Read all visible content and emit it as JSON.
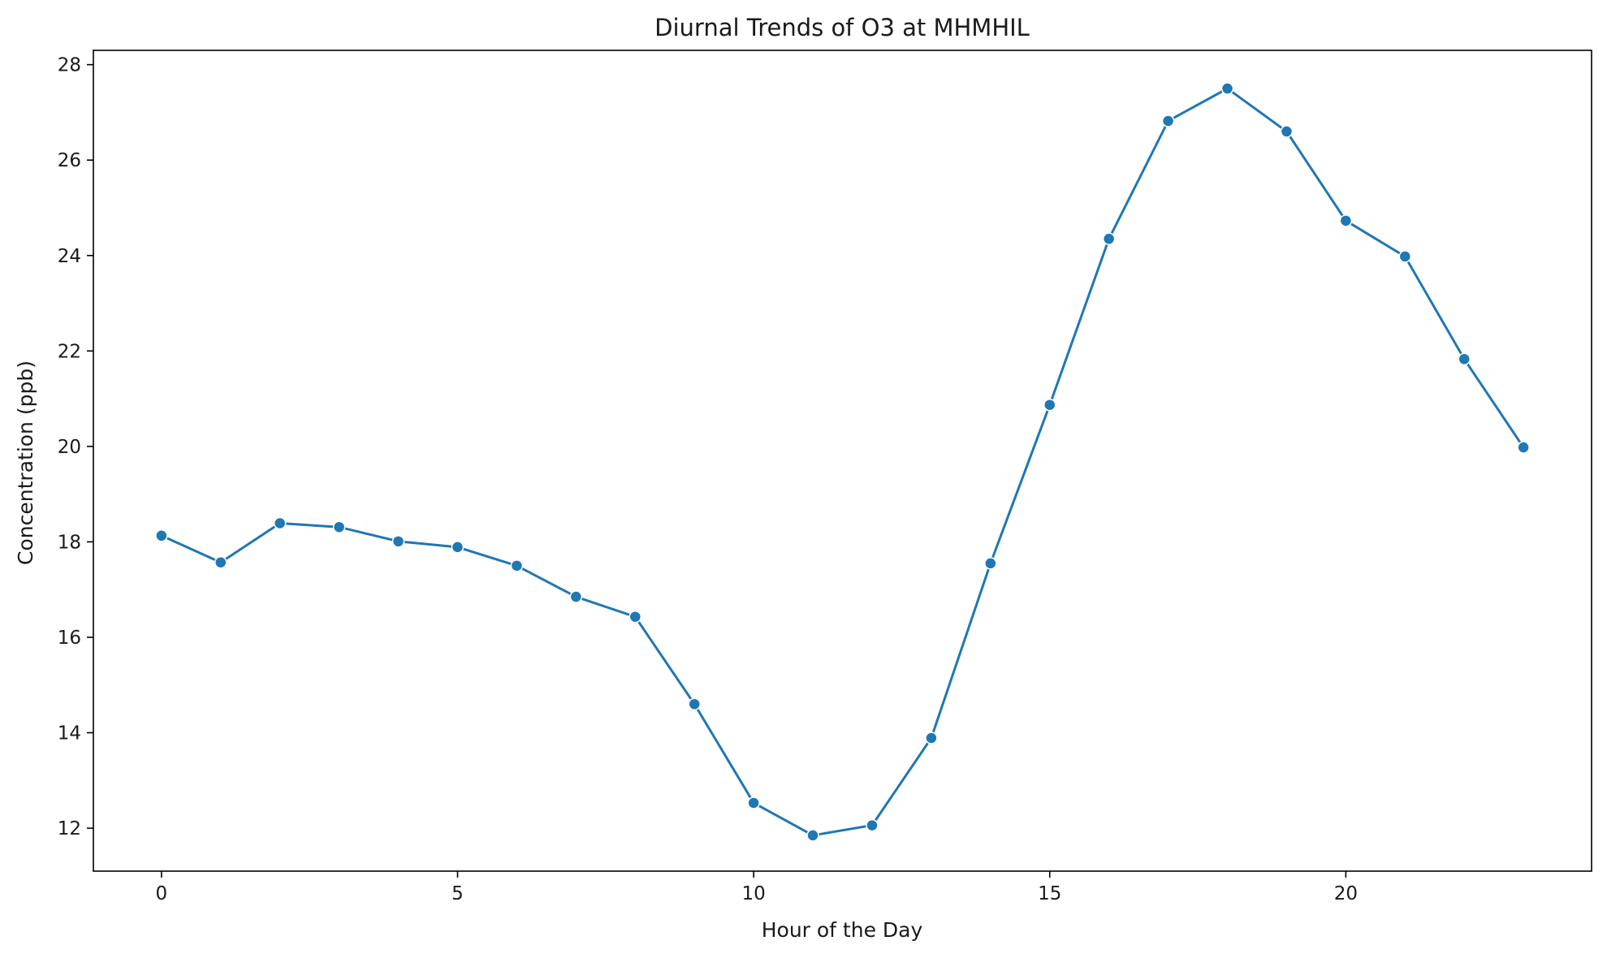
{
  "chart_data": {
    "type": "line",
    "title": "Diurnal Trends of O3 at MHMHIL",
    "xlabel": "Hour of the Day",
    "ylabel": "Concentration (ppb)",
    "xlim": [
      -1.15,
      24.15
    ],
    "ylim": [
      11.1,
      28.3
    ],
    "x_ticks": [
      0,
      5,
      10,
      15,
      20
    ],
    "y_ticks": [
      12,
      14,
      16,
      18,
      20,
      22,
      24,
      26,
      28
    ],
    "grid": false,
    "legend": "none",
    "line_color": "#1f77b4",
    "markers": true,
    "series": [
      {
        "x": [
          0,
          1,
          2,
          3,
          4,
          5,
          6,
          7,
          8,
          9,
          10,
          11,
          12,
          13,
          14,
          15,
          16,
          17,
          18,
          19,
          20,
          21,
          22,
          23
        ],
        "values": [
          18.13,
          17.57,
          18.39,
          18.31,
          18.01,
          17.89,
          17.5,
          16.85,
          16.43,
          14.6,
          12.53,
          11.85,
          12.06,
          13.89,
          17.55,
          20.87,
          24.35,
          26.82,
          27.5,
          26.6,
          24.73,
          23.98,
          21.83,
          19.98
        ]
      }
    ]
  }
}
